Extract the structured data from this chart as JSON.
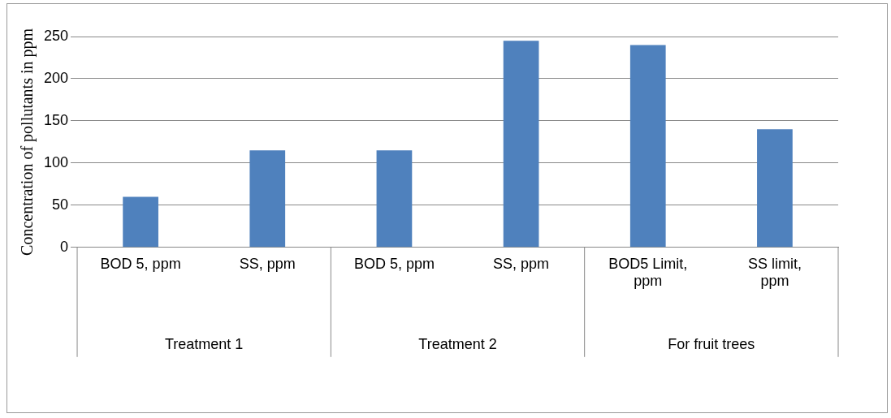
{
  "chart_data": {
    "type": "bar",
    "ylabel": "Concentration of pollutants in ppm",
    "categories": [
      "BOD 5, ppm",
      "SS, ppm",
      "BOD 5, ppm",
      "SS, ppm",
      "BOD5 Limit, ppm",
      "SS limit, ppm"
    ],
    "values": [
      60,
      115,
      115,
      245,
      240,
      140
    ],
    "color": "#4f81bd",
    "ylim": [
      0,
      250
    ],
    "yticks": [
      0,
      50,
      100,
      150,
      200,
      250
    ],
    "grid": "y",
    "legend": false,
    "annotations": [
      "Treatment 1",
      "Treatment 2",
      "For fruit trees"
    ]
  }
}
